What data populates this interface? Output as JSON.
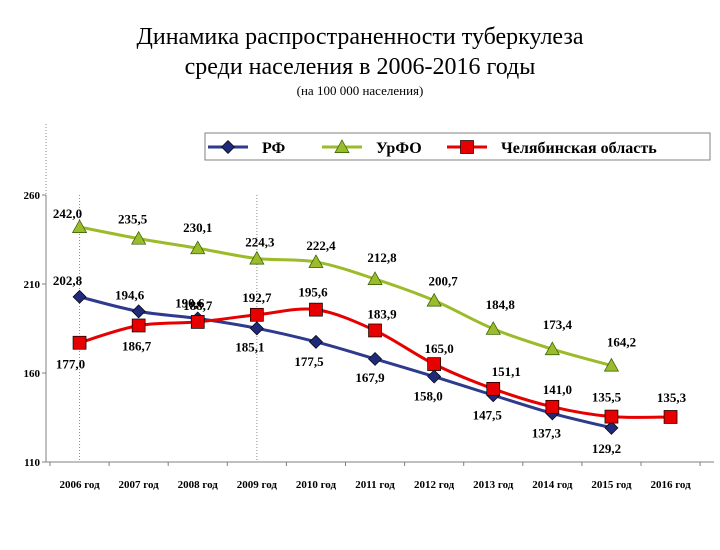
{
  "header": {
    "title_line1": "Динамика распространенности туберкулеза",
    "title_line2": "среди населения в 2006-2016 годы",
    "subtitle": "(на 100 000 населения)"
  },
  "chart_data": {
    "type": "line",
    "title": "Динамика распространенности туберкулеза среди населения в 2006-2016 годы",
    "subtitle": "(на 100 000 населения)",
    "categories": [
      "2006 год",
      "2007 год",
      "2008 год",
      "2009 год",
      "2010 год",
      "2011 год",
      "2012 год",
      "2013 год",
      "2014 год",
      "2015 год",
      "2016 год"
    ],
    "y_ticks": [
      "110",
      "160",
      "210",
      "260"
    ],
    "ylim": [
      110,
      260
    ],
    "legend_position": "top",
    "grid": false,
    "series": [
      {
        "name": "РФ",
        "color": "#1f2a7a",
        "marker": "diamond",
        "values": [
          202.8,
          194.6,
          190.6,
          185.1,
          177.5,
          167.9,
          158.0,
          147.5,
          137.3,
          129.2,
          null
        ],
        "labels": [
          "202,8",
          "194,6",
          "190,6",
          "185,1",
          "177,5",
          "167,9",
          "158,0",
          "147,5",
          "137,3",
          "129,2",
          ""
        ]
      },
      {
        "name": "УрФО",
        "color": "#9bbb2a",
        "marker": "triangle",
        "values": [
          242.0,
          235.5,
          230.1,
          224.3,
          222.4,
          212.8,
          200.7,
          184.8,
          173.4,
          164.2,
          null
        ],
        "labels": [
          "242,0",
          "235,5",
          "230,1",
          "224,3",
          "222,4",
          "212,8",
          "200,7",
          "184,8",
          "173,4",
          "164,2",
          ""
        ]
      },
      {
        "name": "Челябинская область",
        "color": "#e60000",
        "marker": "square",
        "values": [
          177.0,
          186.7,
          188.7,
          192.7,
          195.6,
          183.9,
          165.0,
          151.1,
          141.0,
          135.5,
          135.3
        ],
        "labels": [
          "177,0",
          "186,7",
          "188,7",
          "192,7",
          "195,6",
          "183,9",
          "165,0",
          "151,1",
          "141,0",
          "135,5",
          "135,3"
        ]
      }
    ]
  }
}
